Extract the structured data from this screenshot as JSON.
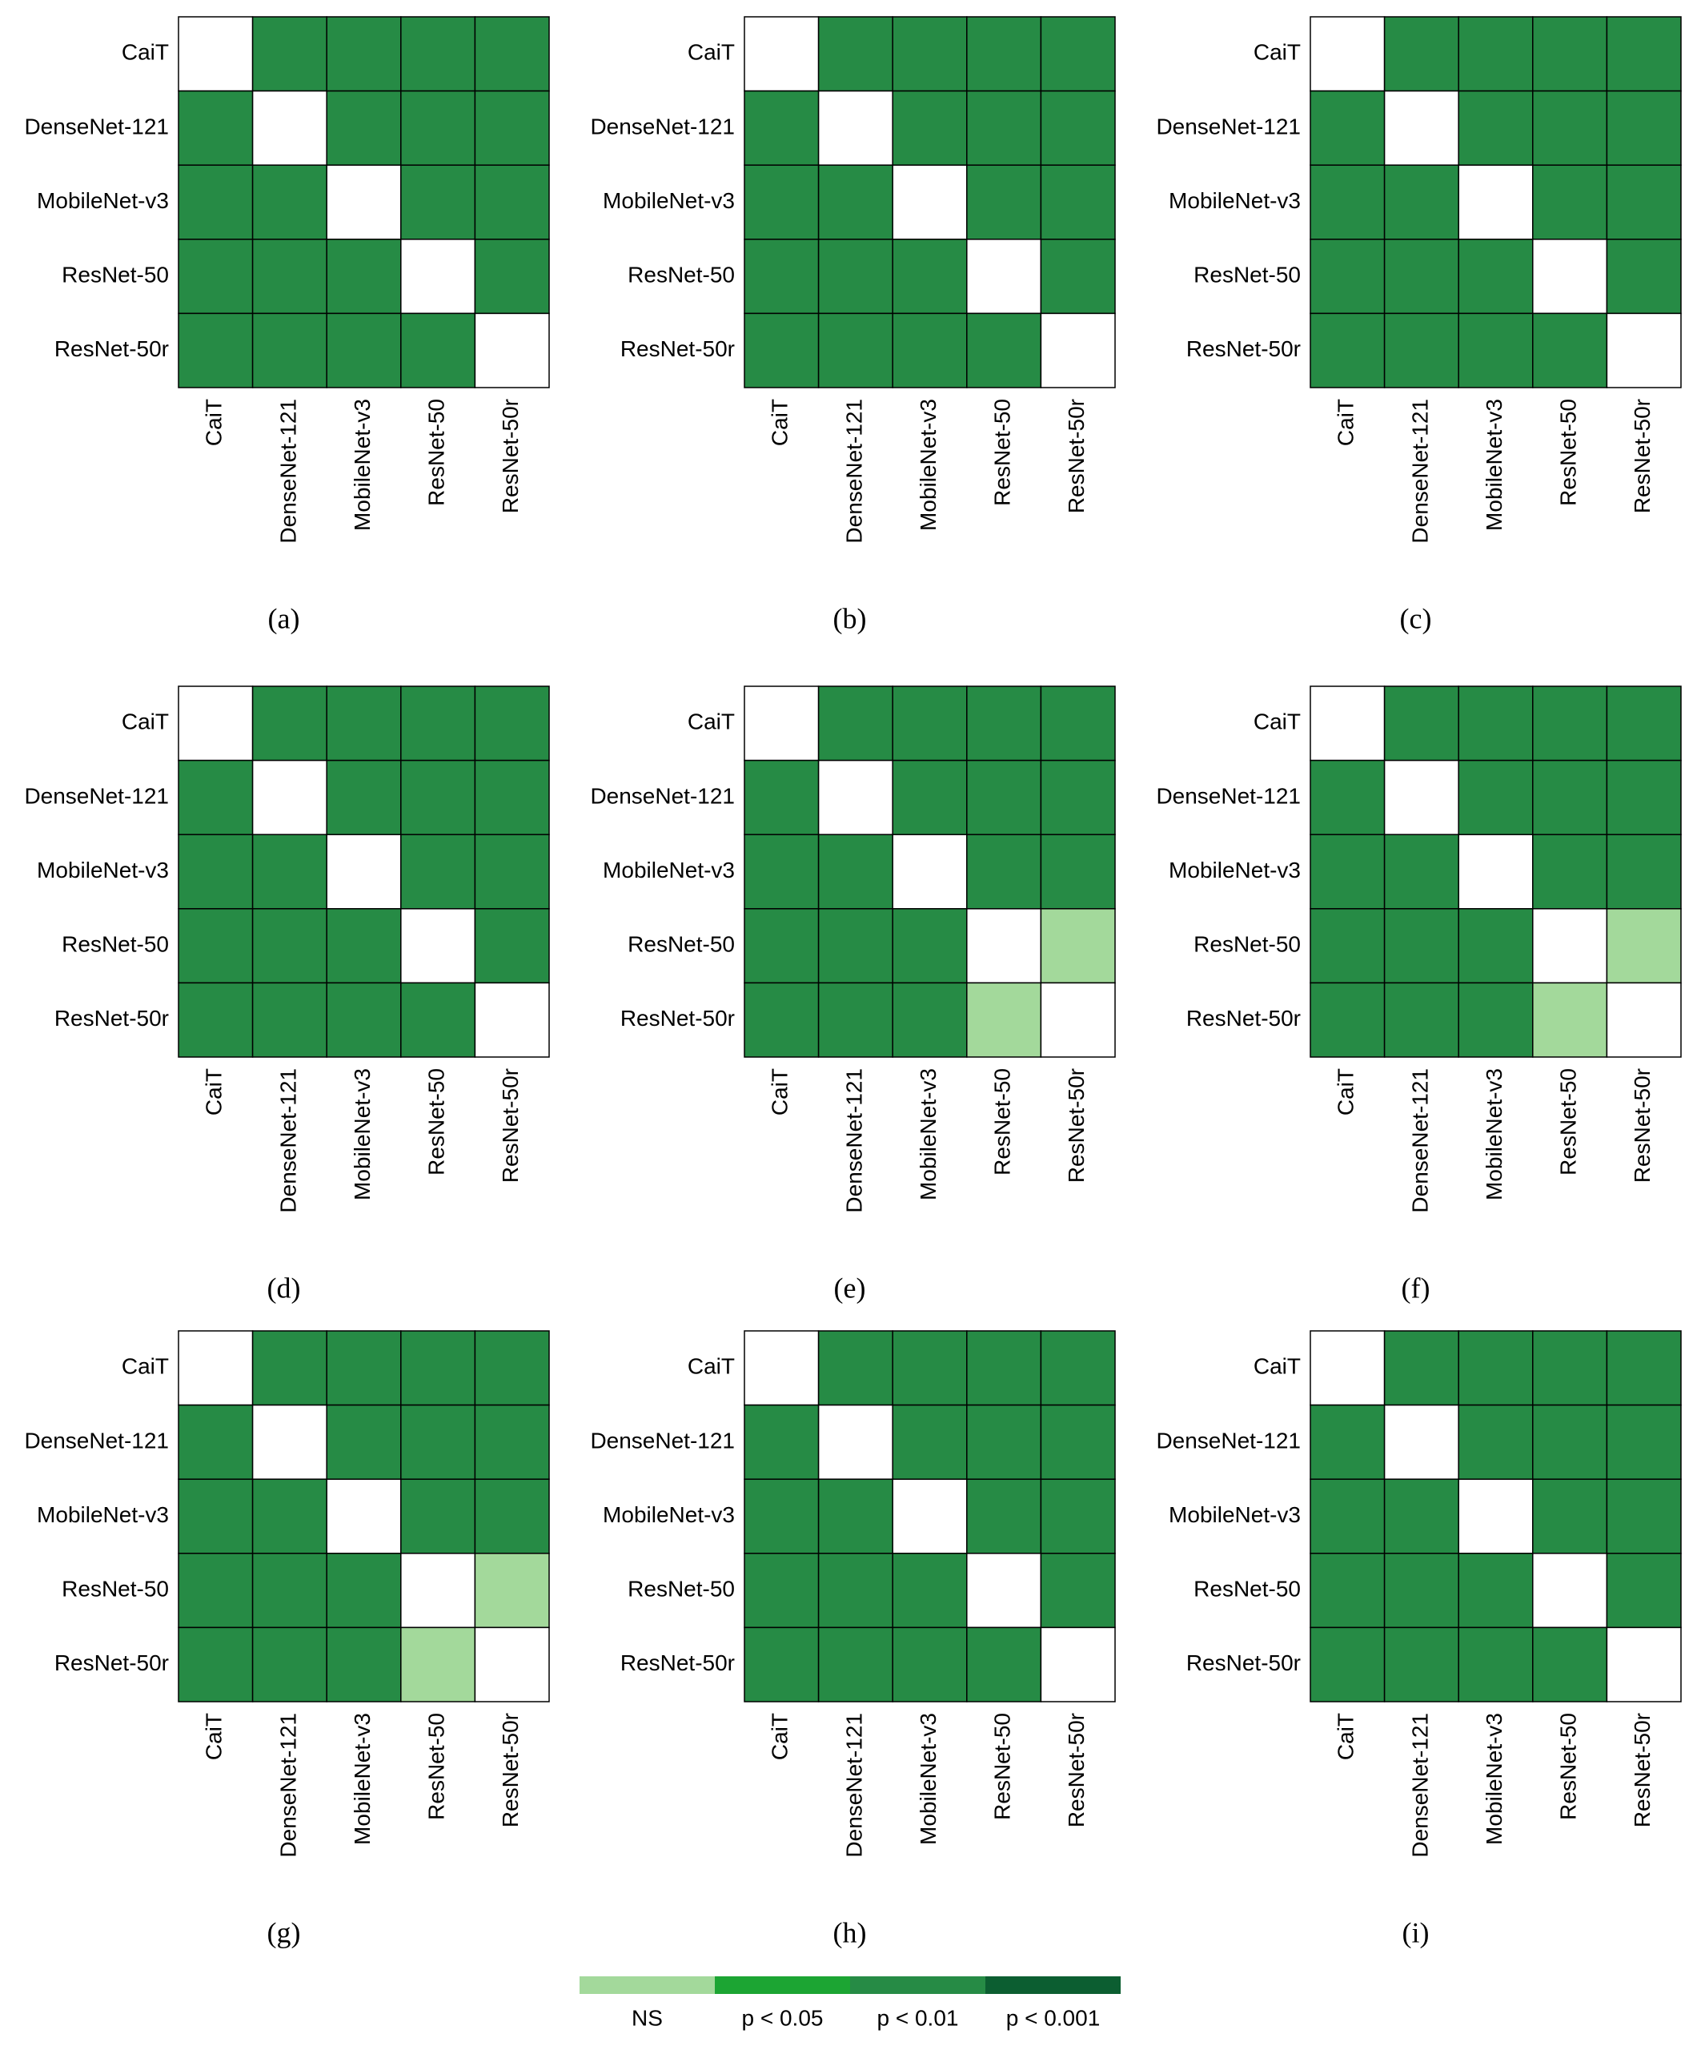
{
  "chart_data": [
    {
      "type": "heatmap",
      "label": "(a)",
      "categories": [
        "CaiT",
        "DenseNet-121",
        "MobileNet-v3",
        "ResNet-50",
        "ResNet-50r"
      ],
      "values": [
        [
          null,
          "p < 0.01",
          "p < 0.01",
          "p < 0.01",
          "p < 0.01"
        ],
        [
          "p < 0.01",
          null,
          "p < 0.01",
          "p < 0.01",
          "p < 0.01"
        ],
        [
          "p < 0.01",
          "p < 0.01",
          null,
          "p < 0.01",
          "p < 0.01"
        ],
        [
          "p < 0.01",
          "p < 0.01",
          "p < 0.01",
          null,
          "p < 0.01"
        ],
        [
          "p < 0.01",
          "p < 0.01",
          "p < 0.01",
          "p < 0.01",
          null
        ]
      ]
    },
    {
      "type": "heatmap",
      "label": "(b)",
      "categories": [
        "CaiT",
        "DenseNet-121",
        "MobileNet-v3",
        "ResNet-50",
        "ResNet-50r"
      ],
      "values": [
        [
          null,
          "p < 0.01",
          "p < 0.01",
          "p < 0.01",
          "p < 0.01"
        ],
        [
          "p < 0.01",
          null,
          "p < 0.01",
          "p < 0.01",
          "p < 0.01"
        ],
        [
          "p < 0.01",
          "p < 0.01",
          null,
          "p < 0.01",
          "p < 0.01"
        ],
        [
          "p < 0.01",
          "p < 0.01",
          "p < 0.01",
          null,
          "p < 0.01"
        ],
        [
          "p < 0.01",
          "p < 0.01",
          "p < 0.01",
          "p < 0.01",
          null
        ]
      ]
    },
    {
      "type": "heatmap",
      "label": "(c)",
      "categories": [
        "CaiT",
        "DenseNet-121",
        "MobileNet-v3",
        "ResNet-50",
        "ResNet-50r"
      ],
      "values": [
        [
          null,
          "p < 0.01",
          "p < 0.01",
          "p < 0.01",
          "p < 0.01"
        ],
        [
          "p < 0.01",
          null,
          "p < 0.01",
          "p < 0.01",
          "p < 0.01"
        ],
        [
          "p < 0.01",
          "p < 0.01",
          null,
          "p < 0.01",
          "p < 0.01"
        ],
        [
          "p < 0.01",
          "p < 0.01",
          "p < 0.01",
          null,
          "p < 0.01"
        ],
        [
          "p < 0.01",
          "p < 0.01",
          "p < 0.01",
          "p < 0.01",
          null
        ]
      ]
    },
    {
      "type": "heatmap",
      "label": "(d)",
      "categories": [
        "CaiT",
        "DenseNet-121",
        "MobileNet-v3",
        "ResNet-50",
        "ResNet-50r"
      ],
      "values": [
        [
          null,
          "p < 0.01",
          "p < 0.01",
          "p < 0.01",
          "p < 0.01"
        ],
        [
          "p < 0.01",
          null,
          "p < 0.01",
          "p < 0.01",
          "p < 0.01"
        ],
        [
          "p < 0.01",
          "p < 0.01",
          null,
          "p < 0.01",
          "p < 0.01"
        ],
        [
          "p < 0.01",
          "p < 0.01",
          "p < 0.01",
          null,
          "p < 0.01"
        ],
        [
          "p < 0.01",
          "p < 0.01",
          "p < 0.01",
          "p < 0.01",
          null
        ]
      ]
    },
    {
      "type": "heatmap",
      "label": "(e)",
      "categories": [
        "CaiT",
        "DenseNet-121",
        "MobileNet-v3",
        "ResNet-50",
        "ResNet-50r"
      ],
      "values": [
        [
          null,
          "p < 0.01",
          "p < 0.01",
          "p < 0.01",
          "p < 0.01"
        ],
        [
          "p < 0.01",
          null,
          "p < 0.01",
          "p < 0.01",
          "p < 0.01"
        ],
        [
          "p < 0.01",
          "p < 0.01",
          null,
          "p < 0.01",
          "p < 0.01"
        ],
        [
          "p < 0.01",
          "p < 0.01",
          "p < 0.01",
          null,
          "NS"
        ],
        [
          "p < 0.01",
          "p < 0.01",
          "p < 0.01",
          "NS",
          null
        ]
      ]
    },
    {
      "type": "heatmap",
      "label": "(f)",
      "categories": [
        "CaiT",
        "DenseNet-121",
        "MobileNet-v3",
        "ResNet-50",
        "ResNet-50r"
      ],
      "values": [
        [
          null,
          "p < 0.01",
          "p < 0.01",
          "p < 0.01",
          "p < 0.01"
        ],
        [
          "p < 0.01",
          null,
          "p < 0.01",
          "p < 0.01",
          "p < 0.01"
        ],
        [
          "p < 0.01",
          "p < 0.01",
          null,
          "p < 0.01",
          "p < 0.01"
        ],
        [
          "p < 0.01",
          "p < 0.01",
          "p < 0.01",
          null,
          "NS"
        ],
        [
          "p < 0.01",
          "p < 0.01",
          "p < 0.01",
          "NS",
          null
        ]
      ]
    },
    {
      "type": "heatmap",
      "label": "(g)",
      "categories": [
        "CaiT",
        "DenseNet-121",
        "MobileNet-v3",
        "ResNet-50",
        "ResNet-50r"
      ],
      "values": [
        [
          null,
          "p < 0.01",
          "p < 0.01",
          "p < 0.01",
          "p < 0.01"
        ],
        [
          "p < 0.01",
          null,
          "p < 0.01",
          "p < 0.01",
          "p < 0.01"
        ],
        [
          "p < 0.01",
          "p < 0.01",
          null,
          "p < 0.01",
          "p < 0.01"
        ],
        [
          "p < 0.01",
          "p < 0.01",
          "p < 0.01",
          null,
          "NS"
        ],
        [
          "p < 0.01",
          "p < 0.01",
          "p < 0.01",
          "NS",
          null
        ]
      ]
    },
    {
      "type": "heatmap",
      "label": "(h)",
      "categories": [
        "CaiT",
        "DenseNet-121",
        "MobileNet-v3",
        "ResNet-50",
        "ResNet-50r"
      ],
      "values": [
        [
          null,
          "p < 0.01",
          "p < 0.01",
          "p < 0.01",
          "p < 0.01"
        ],
        [
          "p < 0.01",
          null,
          "p < 0.01",
          "p < 0.01",
          "p < 0.01"
        ],
        [
          "p < 0.01",
          "p < 0.01",
          null,
          "p < 0.01",
          "p < 0.01"
        ],
        [
          "p < 0.01",
          "p < 0.01",
          "p < 0.01",
          null,
          "p < 0.01"
        ],
        [
          "p < 0.01",
          "p < 0.01",
          "p < 0.01",
          "p < 0.01",
          null
        ]
      ]
    },
    {
      "type": "heatmap",
      "label": "(i)",
      "categories": [
        "CaiT",
        "DenseNet-121",
        "MobileNet-v3",
        "ResNet-50",
        "ResNet-50r"
      ],
      "values": [
        [
          null,
          "p < 0.01",
          "p < 0.01",
          "p < 0.01",
          "p < 0.01"
        ],
        [
          "p < 0.01",
          null,
          "p < 0.01",
          "p < 0.01",
          "p < 0.01"
        ],
        [
          "p < 0.01",
          "p < 0.01",
          null,
          "p < 0.01",
          "p < 0.01"
        ],
        [
          "p < 0.01",
          "p < 0.01",
          "p < 0.01",
          null,
          "p < 0.01"
        ],
        [
          "p < 0.01",
          "p < 0.01",
          "p < 0.01",
          "p < 0.01",
          null
        ]
      ]
    }
  ],
  "legend": [
    {
      "name": "NS",
      "color": "#a3d99b"
    },
    {
      "name": "p < 0.05",
      "color": "#1ca533"
    },
    {
      "name": "p < 0.01",
      "color": "#268b45"
    },
    {
      "name": "p < 0.001",
      "color": "#0c5e31"
    }
  ]
}
